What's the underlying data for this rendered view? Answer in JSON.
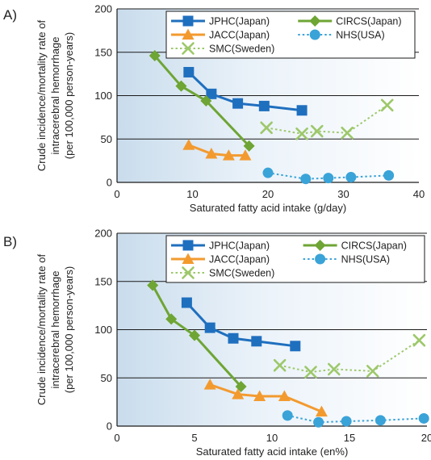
{
  "chart_data": [
    {
      "type": "line",
      "panel_label": "A)",
      "xlabel": "Saturated fatty acid intake (g/day)",
      "ylabel_lines": [
        "Crude incidence/mortality rate of",
        "intracerebral hemorrhage",
        "(per 100,000 person-years)"
      ],
      "xlim": [
        0,
        40
      ],
      "ylim": [
        0,
        200
      ],
      "xticks": [
        "0",
        "10",
        "20",
        "30",
        "40"
      ],
      "yticks": [
        "0",
        "50",
        "100",
        "150",
        "200"
      ],
      "grid": "horizontal",
      "legend_position": "top-right",
      "series": [
        {
          "name": "JPHC(Japan)",
          "color": "#1f6fbf",
          "marker": "square",
          "dash": false,
          "x": [
            9.5,
            12.5,
            16.0,
            19.5,
            24.5
          ],
          "y": [
            127,
            102,
            91,
            88,
            83
          ]
        },
        {
          "name": "JACC(Japan)",
          "color": "#f39a2f",
          "marker": "triangle",
          "dash": false,
          "x": [
            9.5,
            12.5,
            14.8,
            17.0
          ],
          "y": [
            43,
            33,
            31,
            31
          ]
        },
        {
          "name": "SMC(Sweden)",
          "color": "#9dc86a",
          "marker": "x",
          "dash": true,
          "x": [
            19.8,
            24.5,
            26.5,
            30.5,
            35.8
          ],
          "y": [
            63,
            56,
            59,
            57,
            89
          ]
        },
        {
          "name": "CIRCS(Japan)",
          "color": "#6ea534",
          "marker": "diamond",
          "dash": false,
          "x": [
            5.0,
            8.5,
            11.8,
            17.5
          ],
          "y": [
            146,
            111,
            94,
            42
          ]
        },
        {
          "name": "NHS(USA)",
          "color": "#3aa3d8",
          "marker": "circle",
          "dash": true,
          "x": [
            20.0,
            25.0,
            28.0,
            31.0,
            36.0
          ],
          "y": [
            11,
            4,
            5,
            6,
            8
          ]
        }
      ]
    },
    {
      "type": "line",
      "panel_label": "B)",
      "xlabel": "Saturated fatty acid intake (en%)",
      "ylabel_lines": [
        "Crude incidence/mortality rate of",
        "intracerebral  hemorrhage",
        "(per 100,000 person-years)"
      ],
      "xlim": [
        0,
        20
      ],
      "ylim": [
        0,
        200
      ],
      "xticks": [
        "0",
        "5",
        "10",
        "15",
        "20"
      ],
      "yticks": [
        "0",
        "50",
        "100",
        "150",
        "200"
      ],
      "grid": "horizontal",
      "legend_position": "top-right",
      "series": [
        {
          "name": "JPHC(Japan)",
          "color": "#1f6fbf",
          "marker": "square",
          "dash": false,
          "x": [
            4.5,
            6.0,
            7.5,
            9.0,
            11.5
          ],
          "y": [
            128,
            102,
            91,
            88,
            83
          ]
        },
        {
          "name": "JACC(Japan)",
          "color": "#f39a2f",
          "marker": "triangle",
          "dash": false,
          "x": [
            6.0,
            7.8,
            9.2,
            10.8,
            13.2
          ],
          "y": [
            43,
            33,
            31,
            31,
            15
          ]
        },
        {
          "name": "SMC(Sweden)",
          "color": "#9dc86a",
          "marker": "x",
          "dash": true,
          "x": [
            10.5,
            12.5,
            14.0,
            16.5,
            19.5
          ],
          "y": [
            63,
            56,
            59,
            57,
            89
          ]
        },
        {
          "name": "CIRCS(Japan)",
          "color": "#6ea534",
          "marker": "diamond",
          "dash": false,
          "x": [
            2.3,
            3.5,
            5.0,
            8.0
          ],
          "y": [
            146,
            111,
            94,
            41
          ]
        },
        {
          "name": "NHS(USA)",
          "color": "#3aa3d8",
          "marker": "circle",
          "dash": true,
          "x": [
            11.0,
            13.0,
            14.8,
            17.0,
            19.8
          ],
          "y": [
            11,
            4,
            5,
            6,
            8
          ]
        }
      ]
    }
  ]
}
